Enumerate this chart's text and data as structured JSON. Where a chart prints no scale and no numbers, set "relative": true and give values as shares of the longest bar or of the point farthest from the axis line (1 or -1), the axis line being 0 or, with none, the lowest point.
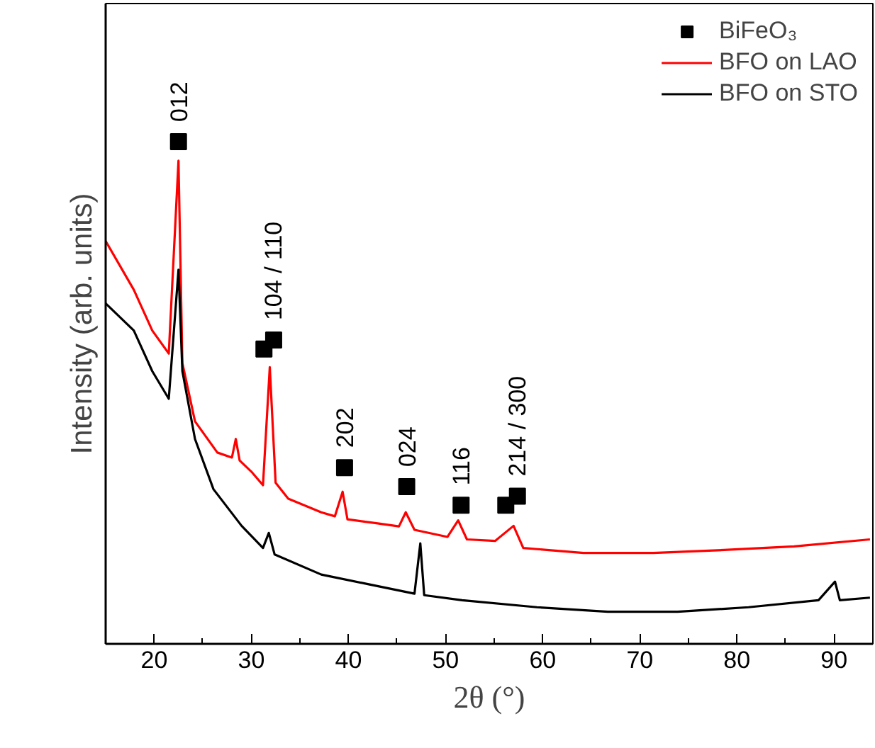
{
  "chart_data": {
    "type": "line",
    "relative": true,
    "xlabel": "2θ (°)",
    "ylabel": "Intensity (arb. units)",
    "xlim": [
      15,
      94
    ],
    "xticks": [
      20,
      30,
      40,
      50,
      60,
      70,
      80,
      90
    ],
    "tick_labels": "x",
    "legend": "top right",
    "grid": false,
    "series": [
      {
        "name": "BiFeO₃",
        "type": "scatter",
        "marker": "square",
        "color": "#000000",
        "x": [
          22.5,
          31.3,
          32.3,
          39.6,
          46.0,
          51.6,
          56.2,
          57.4
        ],
        "values": [
          1.0,
          0.587,
          0.605,
          0.351,
          0.313,
          0.276,
          0.276,
          0.294
        ]
      },
      {
        "name": "BFO on LAO",
        "color": "#ff0000",
        "x": [
          15,
          17.9,
          19.8,
          21.5,
          22.5,
          22.9,
          24.2,
          26.5,
          28.0,
          28.4,
          28.8,
          30.0,
          31.2,
          31.9,
          32.5,
          33.8,
          37.2,
          38.6,
          39.4,
          39.9,
          43.0,
          45.2,
          45.9,
          46.8,
          50.2,
          51.3,
          52.2,
          55.1,
          57.0,
          58.0,
          64.2,
          71.4,
          78.7,
          85.9,
          93.7
        ],
        "values": [
          0.802,
          0.705,
          0.624,
          0.578,
          0.962,
          0.559,
          0.443,
          0.381,
          0.371,
          0.408,
          0.365,
          0.343,
          0.316,
          0.551,
          0.321,
          0.289,
          0.262,
          0.254,
          0.303,
          0.248,
          0.24,
          0.234,
          0.262,
          0.227,
          0.213,
          0.246,
          0.208,
          0.205,
          0.235,
          0.191,
          0.181,
          0.181,
          0.187,
          0.194,
          0.208
        ]
      },
      {
        "name": "BFO on STO",
        "color": "#000000",
        "x": [
          15,
          17.9,
          19.8,
          21.5,
          22.5,
          22.9,
          24.2,
          26.1,
          29.0,
          31.2,
          31.8,
          32.4,
          37.2,
          42.0,
          46.8,
          47.4,
          47.8,
          51.7,
          59.4,
          66.7,
          73.9,
          81.2,
          88.4,
          90.1,
          90.6,
          93.7
        ],
        "values": [
          0.678,
          0.624,
          0.543,
          0.488,
          0.745,
          0.543,
          0.408,
          0.308,
          0.235,
          0.191,
          0.221,
          0.178,
          0.138,
          0.119,
          0.1,
          0.2,
          0.097,
          0.087,
          0.073,
          0.064,
          0.064,
          0.073,
          0.087,
          0.124,
          0.087,
          0.092
        ]
      }
    ],
    "annotations": [
      {
        "text": "012",
        "x": 22.5,
        "y": 1.0
      },
      {
        "text": "104 / 110",
        "x": 32.3,
        "y": 0.605
      },
      {
        "text": "202",
        "x": 39.6,
        "y": 0.351
      },
      {
        "text": "024",
        "x": 46.0,
        "y": 0.313
      },
      {
        "text": "116",
        "x": 51.6,
        "y": 0.276
      },
      {
        "text": "214 / 300",
        "x": 57.4,
        "y": 0.294
      }
    ]
  }
}
